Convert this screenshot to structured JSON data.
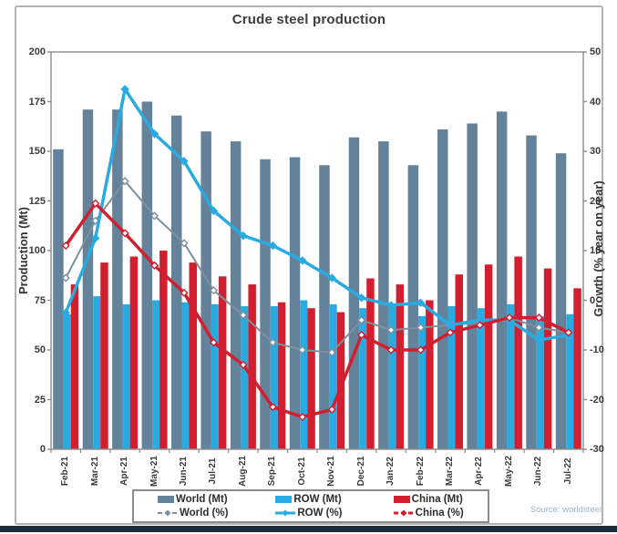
{
  "chart_data": {
    "type": "combo-bar-line",
    "title": "Crude steel production",
    "categories": [
      "Feb-21",
      "Mar-21",
      "Apr-21",
      "May-21",
      "Jun-21",
      "Jul-21",
      "Aug-21",
      "Sep-21",
      "Oct-21",
      "Nov-21",
      "Dec-21",
      "Jan-22",
      "Feb-22",
      "Mar-22",
      "Apr-22",
      "May-22",
      "Jun-22",
      "Jul-22"
    ],
    "left_axis": {
      "label": "Production (Mt)",
      "min": 0,
      "max": 200,
      "ticks": [
        0,
        25,
        50,
        75,
        100,
        125,
        150,
        175,
        200
      ]
    },
    "right_axis": {
      "label": "Growth (% year on year)",
      "min": -30,
      "max": 50,
      "ticks": [
        50,
        40,
        30,
        20,
        10,
        0,
        -10,
        -20,
        -30
      ]
    },
    "bar_series": [
      {
        "name": "World (Mt)",
        "color": "#64839a",
        "values": [
          151,
          171,
          171,
          175,
          168,
          160,
          155,
          146,
          147,
          143,
          157,
          155,
          143,
          161,
          164,
          170,
          158,
          149
        ]
      },
      {
        "name": "ROW (Mt)",
        "color": "#29abe2",
        "values": [
          68,
          77,
          73,
          75,
          74,
          73,
          72,
          72,
          75,
          73,
          71,
          72,
          67,
          72,
          71,
          73,
          67,
          68
        ]
      },
      {
        "name": "China (Mt)",
        "color": "#d21f2f",
        "values": [
          83,
          94,
          97,
          100,
          94,
          87,
          83,
          74,
          71,
          69,
          86,
          83,
          75,
          88,
          93,
          97,
          91,
          81
        ]
      }
    ],
    "line_series": [
      {
        "name": "World (%)",
        "color": "#7d909e",
        "marker": "open-diamond",
        "width": 2,
        "values": [
          4.5,
          16,
          24,
          17,
          11.5,
          2,
          -3,
          -8.5,
          -10,
          -10.5,
          -4,
          -6,
          -5.5,
          -5,
          -4.5,
          -3.5,
          -5.5,
          -6.5
        ]
      },
      {
        "name": "ROW (%)",
        "color": "#29abe2",
        "marker": "diamond",
        "width": 3.5,
        "values": [
          -2.5,
          12.5,
          42.5,
          33.5,
          28,
          18,
          13,
          11,
          8,
          4.5,
          0.5,
          -1,
          -0.5,
          -5,
          -4,
          -4,
          -8,
          -7
        ]
      },
      {
        "name": "China (%)",
        "color": "#d21f2f",
        "marker": "open-diamond",
        "width": 3.5,
        "values": [
          11,
          19.5,
          13.5,
          7,
          1.5,
          -8.5,
          -13,
          -21.5,
          -23.5,
          -22,
          -7,
          -10,
          -10,
          -6.5,
          -5,
          -3.5,
          -3.5,
          -6.5
        ]
      }
    ],
    "grid": false,
    "legend_position": "bottom",
    "source_note": "Source: worldsteel"
  },
  "colors": {
    "frame_border": "#b3b3b3",
    "bottom_strip": "#1d2c3a",
    "axis_line": "#8c8c8c",
    "title_text": "#3d3d3d",
    "source_text": "#9fb3c6"
  }
}
